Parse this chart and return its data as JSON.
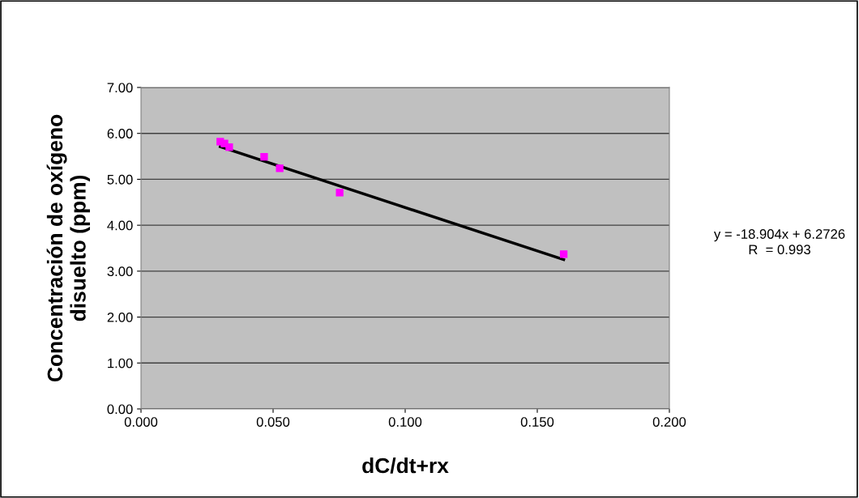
{
  "chart_data": {
    "type": "scatter",
    "xlabel": "dC/dt+rx",
    "ylabel": "Concentración de oxígeno\ndisuelto (ppm)",
    "series": [
      {
        "color": "#ff00ff",
        "marker": "square",
        "x": [
          0.03,
          0.0316,
          0.0334,
          0.0466,
          0.0525,
          0.0752,
          0.16
        ],
        "values": [
          5.82,
          5.78,
          5.7,
          5.49,
          5.24,
          4.71,
          3.37
        ]
      },
      {
        "type": "line",
        "color": "#000000",
        "marker": "none",
        "line_style": "solid",
        "x": [
          0.03,
          0.16
        ],
        "values": [
          5.71,
          3.25
        ]
      }
    ],
    "annotations": [
      "y = -18.904x + 6.2726\nR  = 0.993"
    ],
    "xlim": [
      0,
      0.2
    ],
    "ylim": [
      0,
      7
    ],
    "xticks": [
      {
        "value": 0,
        "label": "0.000"
      },
      {
        "value": 0.05,
        "label": "0.050"
      },
      {
        "value": 0.1,
        "label": "0.100"
      },
      {
        "value": 0.15,
        "label": "0.150"
      },
      {
        "value": 0.2,
        "label": "0.200"
      }
    ],
    "yticks": [
      {
        "value": 0,
        "label": "0.00"
      },
      {
        "value": 1,
        "label": "1.00"
      },
      {
        "value": 2,
        "label": "2.00"
      },
      {
        "value": 3,
        "label": "3.00"
      },
      {
        "value": 4,
        "label": "4.00"
      },
      {
        "value": 5,
        "label": "5.00"
      },
      {
        "value": 6,
        "label": "6.00"
      },
      {
        "value": 7,
        "label": "7.00"
      }
    ],
    "grid": "y",
    "legend": false
  }
}
